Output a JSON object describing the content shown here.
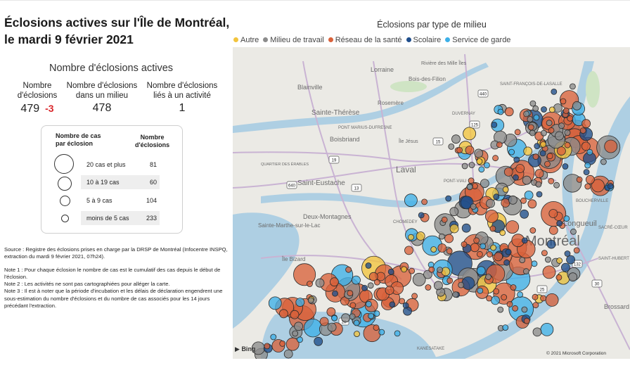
{
  "header": {
    "title_line1": "Éclosions actives sur l'Île de Montréal,",
    "title_line2": "le mardi 9 février 2021"
  },
  "kpis": {
    "heading": "Nombre d'éclosions actives",
    "items": [
      {
        "label_line1": "Nombre",
        "label_line2": "d'éclosions",
        "value": "479",
        "delta": "-3"
      },
      {
        "label_line1": "Nombre d'éclosions",
        "label_line2": "dans un milieu",
        "value": "478"
      },
      {
        "label_line1": "Nombre d'éclosions",
        "label_line2": "liés à un activité",
        "value": "1"
      }
    ]
  },
  "size_legend": {
    "col1_line1": "Nombre de cas",
    "col1_line2": "par éclosion",
    "col2_line1": "Nombre",
    "col2_line2": "d'éclosions",
    "rows": [
      {
        "label": "20 cas et plus",
        "count": "81"
      },
      {
        "label": "10 à 19 cas",
        "count": "60"
      },
      {
        "label": "5 à 9 cas",
        "count": "104"
      },
      {
        "label": "moins de 5 cas",
        "count": "233"
      }
    ]
  },
  "notes": {
    "source": "Source : Registre des éclosions prises en charge par la DRSP de Montréal (Infocentre INSPQ, extraction du mardi 9 février 2021, 07h24).",
    "note1": "Note 1 : Pour chaque éclosion le nombre de cas est le cumulatif des cas depuis le début de l'éclosion.",
    "note2": "Note 2 : Les activités ne sont pas cartographiées pour alléger la carte.",
    "note3": "Note 3 : Il est à noter que la période d'incubation et les délais de déclaration engendrent une sous-estimation du nombre d'éclosions et du nombre de cas associés pour les 14 jours précédant l'extraction."
  },
  "map": {
    "title": "Éclosions par type de milieu",
    "legend": [
      {
        "name": "Autre",
        "color": "#f2c43d"
      },
      {
        "name": "Milieu de travail",
        "color": "#8c8c8c"
      },
      {
        "name": "Réseau de la santé",
        "color": "#d9623b"
      },
      {
        "name": "Scolaire",
        "color": "#1f4e8c"
      },
      {
        "name": "Service de garde",
        "color": "#3db0e8"
      }
    ],
    "places": [
      {
        "name": "Lorraine"
      },
      {
        "name": "Rivière des Mille Îles"
      },
      {
        "name": "Bois-des-Filion"
      },
      {
        "name": "Blainville"
      },
      {
        "name": "Rosemère"
      },
      {
        "name": "Sainte-Thérèse"
      },
      {
        "name": "SAINT-FRANÇOIS-DE-LASALLE"
      },
      {
        "name": "DUVERNAY"
      },
      {
        "name": "PONT MARIUS-DUFRESNE"
      },
      {
        "name": "Boisbriand"
      },
      {
        "name": "Île Jésus"
      },
      {
        "name": "Laval"
      },
      {
        "name": "QUARTIER DES ÉRABLES"
      },
      {
        "name": "Saint-Eustache"
      },
      {
        "name": "PONT-VIAU"
      },
      {
        "name": "CHOMEDEY"
      },
      {
        "name": "Deux-Montagnes"
      },
      {
        "name": "Sainte-Marthe-sur-le-Lac"
      },
      {
        "name": "Longueuil"
      },
      {
        "name": "BOUCHERVILLE"
      },
      {
        "name": "SACRÉ-CŒUR"
      },
      {
        "name": "Montréal"
      },
      {
        "name": "Île Bizard"
      },
      {
        "name": "SAINT-HUBERT"
      },
      {
        "name": "Brossard"
      },
      {
        "name": "KANESATAKE"
      }
    ],
    "route_shields": [
      "440",
      "125",
      "19",
      "15",
      "13",
      "640",
      "20",
      "132",
      "30",
      "25"
    ],
    "attribution": "Bing",
    "copyright": "© 2021 Microsoft Corporation"
  }
}
